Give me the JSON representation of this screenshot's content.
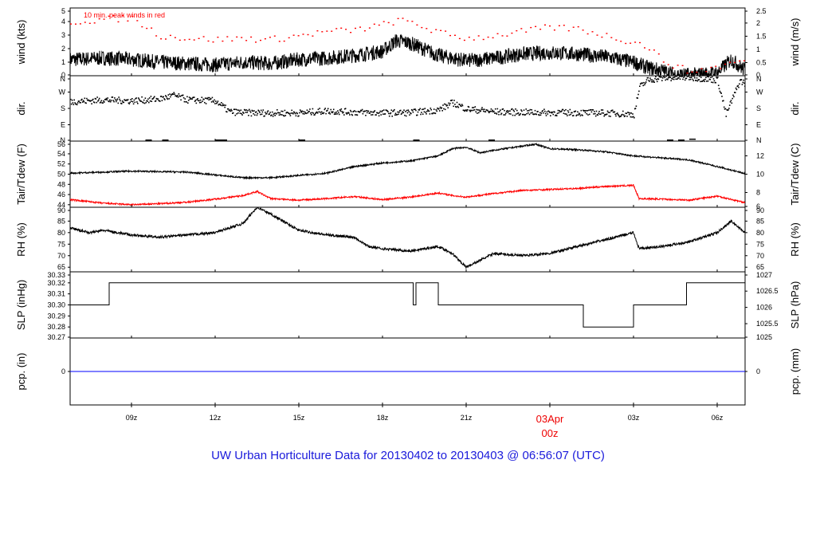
{
  "title": "UW Urban Horticulture Data for 20130402  to  20130403 @ 06:56:07  (UTC)",
  "chart_data": {
    "type": "line",
    "x_range_hours": [
      6.8,
      31.0
    ],
    "x_ticks": [
      {
        "t": 9,
        "label": "09z"
      },
      {
        "t": 12,
        "label": "12z"
      },
      {
        "t": 15,
        "label": "15z"
      },
      {
        "t": 18,
        "label": "18z"
      },
      {
        "t": 21,
        "label": "21z"
      },
      {
        "t": 24,
        "label": "00z",
        "date_label": "03Apr",
        "highlight": true
      },
      {
        "t": 27,
        "label": "03z"
      },
      {
        "t": 30,
        "label": "06z"
      }
    ],
    "panels": [
      {
        "id": "wind",
        "ylabel_left": "wind (kts)",
        "ylabel_right": "wind (m/s)",
        "ylim": [
          0,
          5
        ],
        "left_ticks": [
          "0",
          "1",
          "2",
          "3",
          "4",
          "5"
        ],
        "right_ticks": [
          "0",
          "0.5",
          "1",
          "1.5",
          "2",
          "2.5"
        ],
        "annotation": "10 min. peak winds in red",
        "series": [
          {
            "name": "wind speed",
            "color": "#000000",
            "kind": "noisy",
            "points": [
              [
                6.8,
                1.2
              ],
              [
                8,
                1.3
              ],
              [
                9,
                1.2
              ],
              [
                10,
                1.0
              ],
              [
                11,
                0.9
              ],
              [
                12,
                0.8
              ],
              [
                13,
                1.0
              ],
              [
                14,
                0.9
              ],
              [
                15,
                1.2
              ],
              [
                16,
                1.3
              ],
              [
                17,
                1.5
              ],
              [
                18,
                1.8
              ],
              [
                18.5,
                2.6
              ],
              [
                19,
                2.4
              ],
              [
                20,
                1.5
              ],
              [
                21,
                1.1
              ],
              [
                22,
                1.3
              ],
              [
                23,
                1.6
              ],
              [
                24,
                1.7
              ],
              [
                25,
                1.6
              ],
              [
                26,
                1.4
              ],
              [
                27,
                1.0
              ],
              [
                27.5,
                0.6
              ],
              [
                28,
                0.4
              ],
              [
                28.5,
                0.1
              ],
              [
                29,
                0.05
              ],
              [
                30,
                0.2
              ],
              [
                30.5,
                1.2
              ],
              [
                31,
                0.4
              ]
            ]
          },
          {
            "name": "10 min peak winds",
            "color": "#ff0000",
            "kind": "dots",
            "points": [
              [
                6.8,
                4.0
              ],
              [
                8,
                4.2
              ],
              [
                9,
                4.3
              ],
              [
                10,
                3.0
              ],
              [
                11,
                2.8
              ],
              [
                12,
                2.7
              ],
              [
                13,
                2.8
              ],
              [
                14,
                2.7
              ],
              [
                15,
                3.0
              ],
              [
                16,
                3.3
              ],
              [
                17,
                3.4
              ],
              [
                18,
                3.8
              ],
              [
                18.5,
                4.1
              ],
              [
                19,
                4.0
              ],
              [
                20,
                3.2
              ],
              [
                21,
                2.8
              ],
              [
                22,
                3.0
              ],
              [
                23,
                3.3
              ],
              [
                24,
                3.6
              ],
              [
                25,
                3.5
              ],
              [
                26,
                3.0
              ],
              [
                27,
                2.5
              ],
              [
                27.5,
                2.2
              ],
              [
                28,
                1.2
              ],
              [
                29,
                0.3
              ],
              [
                30,
                0.7
              ],
              [
                31,
                1.2
              ]
            ]
          }
        ]
      },
      {
        "id": "dir",
        "ylabel_left": "dir.",
        "ylabel_right": "dir.",
        "ylim": [
          0,
          360
        ],
        "left_ticks": [
          "N",
          "E",
          "S",
          "W",
          "N"
        ],
        "right_ticks": [
          "N",
          "E",
          "S",
          "W",
          "N"
        ],
        "series": [
          {
            "name": "wind direction",
            "color": "#000000",
            "kind": "scatter",
            "points": [
              [
                6.8,
                220
              ],
              [
                8,
                230
              ],
              [
                9,
                225
              ],
              [
                10,
                235
              ],
              [
                10.5,
                255
              ],
              [
                11,
                230
              ],
              [
                12,
                225
              ],
              [
                12.5,
                165
              ],
              [
                13,
                160
              ],
              [
                14,
                158
              ],
              [
                15,
                158
              ],
              [
                16,
                170
              ],
              [
                17,
                162
              ],
              [
                18,
                158
              ],
              [
                19,
                160
              ],
              [
                20,
                175
              ],
              [
                20.5,
                215
              ],
              [
                21,
                180
              ],
              [
                22,
                165
              ],
              [
                23,
                162
              ],
              [
                24,
                160
              ],
              [
                25,
                160
              ],
              [
                26,
                158
              ],
              [
                27,
                150
              ],
              [
                27.2,
                300
              ],
              [
                27.5,
                340
              ],
              [
                28,
                350
              ],
              [
                29,
                355
              ],
              [
                30,
                340
              ],
              [
                30.3,
                150
              ],
              [
                30.8,
                335
              ],
              [
                31,
                320
              ]
            ]
          }
        ]
      },
      {
        "id": "temp",
        "ylabel_left": "Tair/Tdew (F)",
        "ylabel_right": "Tair/Tdew (C)",
        "ylim": [
          43.5,
          56.5
        ],
        "left_ticks": [
          "44",
          "46",
          "48",
          "50",
          "52",
          "54",
          "56"
        ],
        "right_ticks": [
          "6",
          "8",
          "10",
          "12"
        ],
        "series": [
          {
            "name": "Tair",
            "color": "#000000",
            "kind": "noisy",
            "points": [
              [
                6.8,
                50.2
              ],
              [
                9,
                50.6
              ],
              [
                11,
                50.4
              ],
              [
                13,
                49.3
              ],
              [
                14,
                49.3
              ],
              [
                16,
                50.2
              ],
              [
                17,
                51.5
              ],
              [
                18,
                52.2
              ],
              [
                19,
                52.6
              ],
              [
                20,
                53.6
              ],
              [
                20.5,
                55.0
              ],
              [
                21,
                55.3
              ],
              [
                21.5,
                54.2
              ],
              [
                22,
                54.7
              ],
              [
                23,
                55.5
              ],
              [
                23.5,
                55.9
              ],
              [
                24,
                55.0
              ],
              [
                25,
                54.8
              ],
              [
                26,
                54.4
              ],
              [
                27,
                53.6
              ],
              [
                28,
                53.2
              ],
              [
                29,
                52.8
              ],
              [
                30,
                51.5
              ],
              [
                31,
                50.1
              ]
            ]
          },
          {
            "name": "Tdew",
            "color": "#ff0000",
            "kind": "noisy",
            "points": [
              [
                6.8,
                45.0
              ],
              [
                8,
                44.3
              ],
              [
                9,
                44.0
              ],
              [
                10,
                44.2
              ],
              [
                11,
                44.5
              ],
              [
                12,
                45.1
              ],
              [
                13,
                45.8
              ],
              [
                13.5,
                46.6
              ],
              [
                14,
                45.2
              ],
              [
                15,
                44.9
              ],
              [
                16,
                45.2
              ],
              [
                17,
                45.6
              ],
              [
                18,
                45.0
              ],
              [
                19,
                45.5
              ],
              [
                20,
                46.3
              ],
              [
                20.5,
                45.8
              ],
              [
                21,
                45.5
              ],
              [
                22,
                46.2
              ],
              [
                23,
                46.8
              ],
              [
                24,
                47.0
              ],
              [
                25,
                47.2
              ],
              [
                26,
                47.6
              ],
              [
                27,
                47.8
              ],
              [
                27.2,
                45.2
              ],
              [
                28,
                45.1
              ],
              [
                29,
                44.9
              ],
              [
                30,
                45.7
              ],
              [
                31,
                44.4
              ]
            ]
          }
        ]
      },
      {
        "id": "rh",
        "ylabel_left": "RH (%)",
        "ylabel_right": "RH (%)",
        "ylim": [
          63,
          91
        ],
        "left_ticks": [
          "65",
          "70",
          "75",
          "80",
          "85",
          "90"
        ],
        "right_ticks": [
          "65",
          "70",
          "75",
          "80",
          "85",
          "90"
        ],
        "series": [
          {
            "name": "RH",
            "color": "#000000",
            "kind": "noisy",
            "points": [
              [
                6.8,
                82
              ],
              [
                7.5,
                80
              ],
              [
                8,
                81
              ],
              [
                9,
                79
              ],
              [
                10,
                78
              ],
              [
                11,
                79
              ],
              [
                12,
                80
              ],
              [
                13,
                84
              ],
              [
                13.5,
                91
              ],
              [
                14,
                88
              ],
              [
                15,
                81
              ],
              [
                16,
                79
              ],
              [
                17,
                78
              ],
              [
                17.5,
                74
              ],
              [
                18,
                73
              ],
              [
                19,
                72
              ],
              [
                20,
                74
              ],
              [
                20.5,
                71
              ],
              [
                21,
                65
              ],
              [
                21.5,
                68
              ],
              [
                22,
                71
              ],
              [
                23,
                70
              ],
              [
                24,
                71
              ],
              [
                25,
                74
              ],
              [
                26,
                77
              ],
              [
                27,
                80
              ],
              [
                27.2,
                73
              ],
              [
                28,
                74
              ],
              [
                29,
                76
              ],
              [
                30,
                80
              ],
              [
                30.5,
                85
              ],
              [
                31,
                80
              ]
            ]
          }
        ]
      },
      {
        "id": "slp",
        "ylabel_left": "SLP (inHg)",
        "ylabel_right": "SLP (hPa)",
        "ylim": [
          30.27,
          30.33
        ],
        "left_ticks": [
          "30.27",
          "30.28",
          "30.29",
          "30.30",
          "30.31",
          "30.32",
          "30.33"
        ],
        "right_ticks": [
          "1025",
          "1025.5",
          "1026",
          "1026.5",
          "1027"
        ],
        "series": [
          {
            "name": "SLP",
            "color": "#000000",
            "kind": "step",
            "points": [
              [
                6.8,
                30.3
              ],
              [
                8.2,
                30.3
              ],
              [
                8.2,
                30.32
              ],
              [
                19.1,
                30.32
              ],
              [
                19.1,
                30.3
              ],
              [
                19.2,
                30.3
              ],
              [
                19.2,
                30.32
              ],
              [
                20.0,
                30.32
              ],
              [
                20.0,
                30.3
              ],
              [
                25.2,
                30.3
              ],
              [
                25.2,
                30.28
              ],
              [
                27.0,
                30.28
              ],
              [
                27.0,
                30.3
              ],
              [
                28.9,
                30.3
              ],
              [
                28.9,
                30.32
              ],
              [
                31,
                30.32
              ]
            ]
          }
        ]
      },
      {
        "id": "pcp",
        "ylabel_left": "pcp. (in)",
        "ylabel_right": "pcp. (mm)",
        "ylim": [
          -1,
          1
        ],
        "left_ticks": [
          "0"
        ],
        "right_ticks": [
          "0"
        ],
        "series": [
          {
            "name": "precipitation",
            "color": "#0000ff",
            "kind": "line",
            "points": [
              [
                6.8,
                0
              ],
              [
                31,
                0
              ]
            ]
          }
        ]
      }
    ]
  }
}
